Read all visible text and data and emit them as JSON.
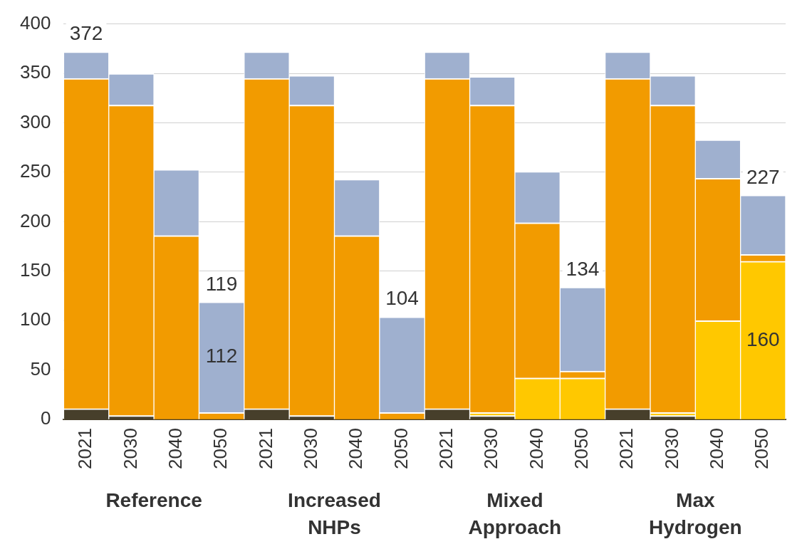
{
  "chart_data": {
    "type": "bar",
    "stacked": true,
    "categories": [
      "2021",
      "2030",
      "2040",
      "2050",
      "2021",
      "2030",
      "2040",
      "2050",
      "2021",
      "2030",
      "2040",
      "2050",
      "2021",
      "2030",
      "2040",
      "2050"
    ],
    "series": [
      {
        "color": "#473f2b",
        "values": [
          11,
          4,
          0,
          0,
          11,
          4,
          0,
          0,
          11,
          4,
          0,
          0,
          11,
          4,
          0,
          0
        ]
      },
      {
        "color": "#ffc800",
        "values": [
          0,
          0,
          0,
          0,
          0,
          0,
          0,
          0,
          0,
          3,
          42,
          42,
          0,
          3,
          100,
          160
        ],
        "value_labels": [
          null,
          null,
          null,
          null,
          null,
          null,
          null,
          null,
          null,
          null,
          null,
          null,
          null,
          null,
          null,
          "160"
        ]
      },
      {
        "color": "#f29b00",
        "values": [
          334,
          314,
          186,
          7,
          334,
          314,
          186,
          7,
          334,
          311,
          157,
          7,
          334,
          311,
          144,
          7
        ]
      },
      {
        "color": "#9fb0cf",
        "values": [
          27,
          32,
          67,
          112,
          27,
          30,
          57,
          97,
          27,
          29,
          52,
          85,
          27,
          30,
          39,
          60
        ],
        "value_labels": [
          null,
          null,
          null,
          "112",
          null,
          null,
          null,
          null,
          null,
          null,
          null,
          null,
          null,
          null,
          null,
          null
        ]
      }
    ],
    "totals": [
      "372",
      null,
      null,
      "119",
      null,
      null,
      null,
      "104",
      null,
      null,
      null,
      "134",
      null,
      null,
      null,
      "227"
    ],
    "annotations": [
      "Reference",
      "Increased NHPs",
      "Mixed Approach",
      "Max Hydrogen"
    ],
    "ylim": [
      0,
      400
    ],
    "yticks": [
      0,
      50,
      100,
      150,
      200,
      250,
      300,
      350,
      400
    ],
    "grid": "y",
    "legend": false
  }
}
